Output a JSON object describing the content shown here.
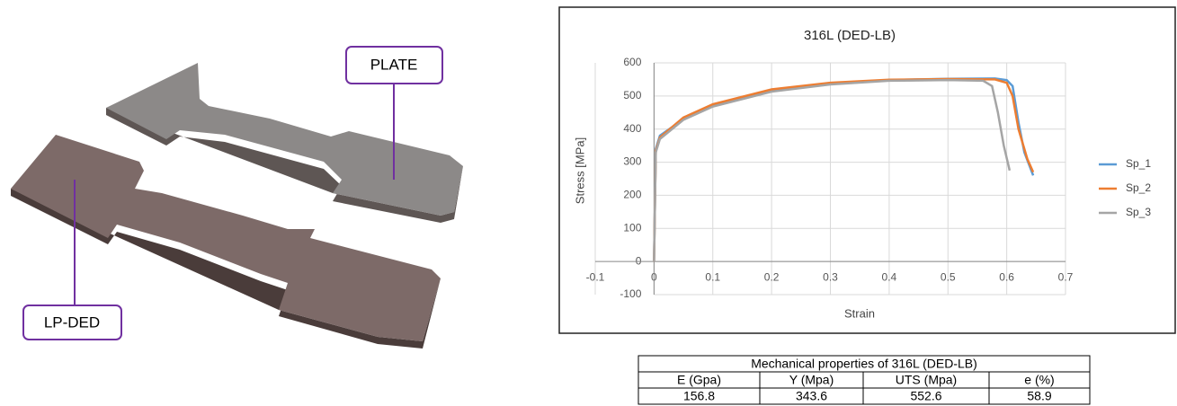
{
  "photo": {
    "labels": [
      "PLATE",
      "LP-DED"
    ]
  },
  "chart_data": {
    "type": "line",
    "title": "316L (DED-LB)",
    "x_label": "Strain",
    "y_label": "Stress [MPa]",
    "xlim": [
      -0.1,
      0.7
    ],
    "xticks": [
      -0.1,
      0,
      0.1,
      0.2,
      0.3,
      0.4,
      0.5,
      0.6,
      0.7
    ],
    "ylim": [
      -100,
      600
    ],
    "yticks": [
      -100,
      0,
      100,
      200,
      300,
      400,
      500,
      600
    ],
    "grid": true,
    "series": [
      {
        "name": "Sp_1",
        "color": "#5b9bd5",
        "x": [
          0,
          0.003,
          0.01,
          0.05,
          0.1,
          0.2,
          0.3,
          0.4,
          0.5,
          0.58,
          0.6,
          0.61,
          0.62,
          0.63,
          0.645
        ],
        "values": [
          0,
          340,
          380,
          430,
          470,
          515,
          538,
          548,
          552,
          553,
          548,
          530,
          420,
          330,
          260
        ]
      },
      {
        "name": "Sp_2",
        "color": "#ed7d31",
        "x": [
          0,
          0.003,
          0.01,
          0.05,
          0.1,
          0.2,
          0.3,
          0.4,
          0.5,
          0.58,
          0.6,
          0.61,
          0.62,
          0.635,
          0.645
        ],
        "values": [
          0,
          335,
          375,
          435,
          475,
          520,
          540,
          549,
          551,
          550,
          540,
          500,
          400,
          310,
          270
        ]
      },
      {
        "name": "Sp_3",
        "color": "#a5a5a5",
        "x": [
          0,
          0.003,
          0.01,
          0.05,
          0.1,
          0.2,
          0.3,
          0.4,
          0.5,
          0.56,
          0.575,
          0.585,
          0.595,
          0.605
        ],
        "values": [
          0,
          330,
          370,
          428,
          468,
          513,
          535,
          546,
          548,
          546,
          530,
          450,
          350,
          275
        ]
      }
    ]
  },
  "table": {
    "title": "Mechanical properties of 316L (DED-LB)",
    "header": [
      "E (Gpa)",
      "Y (Mpa)",
      "UTS (Mpa)",
      "e (%)"
    ],
    "rows": [
      [
        156.8,
        343.6,
        552.6,
        58.9
      ]
    ]
  }
}
